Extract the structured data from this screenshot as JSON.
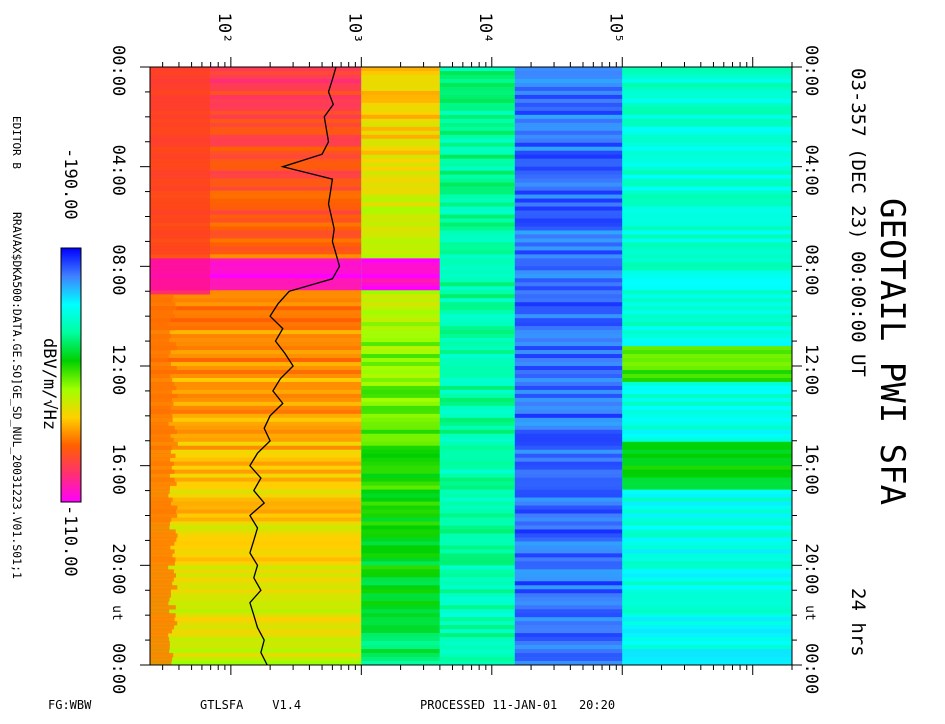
{
  "title": "GEOTAIL PWI SFA",
  "date_line": "03-357 (DEC 23) 00:00:00 UT",
  "duration": "24 hrs",
  "editor": "EDITOR B",
  "file_path": "RRAVAX$DKA500:DATA.GE.SO]GE_SD_NUL_20031223.V01.S01;1",
  "colorbar": {
    "label": "dBV/m/√Hz",
    "min_label": "-190.00",
    "max_label": "-110.00",
    "colors": [
      "#ff00ff",
      "#ff3070",
      "#ff6000",
      "#ffd000",
      "#a0ff00",
      "#00d000",
      "#00ffa0",
      "#00ffff",
      "#4080ff",
      "#0000ff"
    ]
  },
  "footer": {
    "left": "FG:WBW",
    "program": "GTLSFA    V1.4",
    "processed": "PROCESSED 11-JAN-01   20:20"
  },
  "chart_data": {
    "type": "heatmap",
    "title": "GEOTAIL PWI SFA",
    "time_axis": {
      "label": "UT",
      "range_hours": [
        0,
        24
      ],
      "ticks": [
        "00:00",
        "04:00",
        "08:00",
        "12:00",
        "16:00",
        "20:00",
        "00:00"
      ],
      "bottom_label": "UT"
    },
    "frequency_axis": {
      "scale": "log",
      "tick_labels": [
        "10²",
        "10³",
        "10⁴",
        "10⁵"
      ],
      "tick_values": [
        100,
        1000,
        10000,
        100000
      ],
      "range": [
        24,
        2000000
      ]
    },
    "color_scale": {
      "label": "dBV/m/√Hz",
      "min": -190,
      "max": -110
    },
    "spectral_bands": [
      {
        "f_from": 24,
        "f_to": 1000,
        "level_day_start": -122,
        "level_day_end": -142
      },
      {
        "f_from": 1000,
        "f_to": 4000,
        "level_day_start": -135,
        "level_day_end": -160
      },
      {
        "f_from": 4000,
        "f_to": 15000,
        "level_day_start": -163,
        "level_day_end": -165
      },
      {
        "f_from": 15000,
        "f_to": 100000,
        "level_day_start": -182,
        "level_day_end": -183
      },
      {
        "f_from": 100000,
        "f_to": 2000000,
        "level_day_start": -168,
        "level_day_end": -170
      }
    ],
    "enhancement_events": [
      {
        "hour_start": 7.6,
        "hour_end": 8.9,
        "f_from": 24,
        "f_to": 4000,
        "level": -112
      },
      {
        "hour_start": 11.2,
        "hour_end": 12.6,
        "f_from": 110000,
        "f_to": 400000,
        "level": -150
      },
      {
        "hour_start": 15.0,
        "hour_end": 16.8,
        "f_from": 110000,
        "f_to": 300000,
        "level": -155
      }
    ],
    "trace": {
      "description_value": "electron plasma frequency line",
      "points": [
        [
          0.0,
          640
        ],
        [
          0.5,
          600
        ],
        [
          1.0,
          560
        ],
        [
          1.5,
          610
        ],
        [
          2.0,
          520
        ],
        [
          2.5,
          540
        ],
        [
          3.0,
          560
        ],
        [
          3.5,
          500
        ],
        [
          4.0,
          250
        ],
        [
          4.5,
          600
        ],
        [
          5.0,
          580
        ],
        [
          5.5,
          560
        ],
        [
          6.0,
          590
        ],
        [
          6.5,
          620
        ],
        [
          7.0,
          600
        ],
        [
          7.5,
          640
        ],
        [
          8.0,
          680
        ],
        [
          8.5,
          600
        ],
        [
          9.0,
          280
        ],
        [
          9.5,
          230
        ],
        [
          10.0,
          200
        ],
        [
          10.5,
          250
        ],
        [
          11.0,
          220
        ],
        [
          11.5,
          260
        ],
        [
          12.0,
          300
        ],
        [
          12.5,
          240
        ],
        [
          13.0,
          210
        ],
        [
          13.5,
          250
        ],
        [
          14.0,
          200
        ],
        [
          14.5,
          180
        ],
        [
          15.0,
          200
        ],
        [
          15.5,
          160
        ],
        [
          16.0,
          140
        ],
        [
          16.5,
          170
        ],
        [
          17.0,
          150
        ],
        [
          17.5,
          180
        ],
        [
          18.0,
          140
        ],
        [
          18.5,
          160
        ],
        [
          19.0,
          150
        ],
        [
          19.5,
          140
        ],
        [
          20.0,
          160
        ],
        [
          20.5,
          150
        ],
        [
          21.0,
          170
        ],
        [
          21.5,
          140
        ],
        [
          22.0,
          150
        ],
        [
          22.5,
          160
        ],
        [
          23.0,
          180
        ],
        [
          23.5,
          170
        ],
        [
          24.0,
          190
        ]
      ]
    }
  }
}
